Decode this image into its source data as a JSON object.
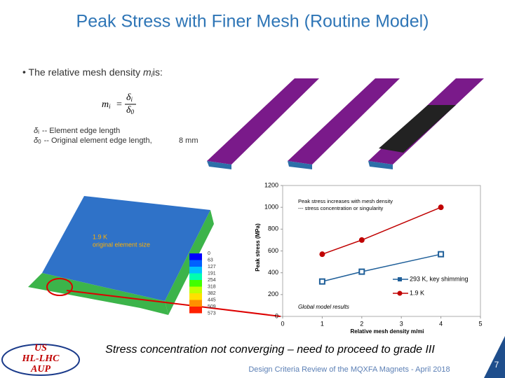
{
  "slide": {
    "title": "Peak Stress with Finer Mesh (Routine Model)",
    "bullet": {
      "before": "The relative mesh density",
      "symbol": "m",
      "sub": "i",
      "after": "is:"
    },
    "formula": {
      "lhs": "m",
      "lhs_sub": "i",
      "eq": "=",
      "num": "δ",
      "num_sub": "i",
      "den": "δ",
      "den_sub": "0"
    },
    "definitions": [
      {
        "symbol": "δ",
        "sub": "i",
        "text": "-- Element edge length"
      },
      {
        "symbol": "δ",
        "sub": "0",
        "text": "-- Original element edge length,"
      }
    ],
    "scale_label": "8 mm",
    "model_label": [
      "1.9 K",
      "original element size"
    ],
    "colorbar_labels": [
      0,
      63,
      127,
      191,
      254,
      318,
      382,
      445,
      509,
      573
    ],
    "caption": "Stress concentration not converging – need to proceed to grade III",
    "footer": "Design Criteria Review of the MQXFA Magnets - April 2018",
    "page_number": "7",
    "logo": [
      "US",
      "HL-LHC",
      "AUP"
    ]
  },
  "chart_data": {
    "type": "line",
    "xlabel": "Relative mesh density m/mi",
    "ylabel": "Peak stress (MPa)",
    "annotations": [
      "Peak stress increases with mesh density",
      "--- stress concentration or singularity",
      "Global model results"
    ],
    "series": [
      {
        "name": "293 K, key shimming",
        "color": "#1f5f99",
        "marker": "square",
        "x": [
          1,
          2,
          4
        ],
        "values": [
          320,
          410,
          570
        ]
      },
      {
        "name": "1.9 K",
        "color": "#c00000",
        "marker": "circle",
        "x": [
          1,
          2,
          4
        ],
        "values": [
          570,
          700,
          1000
        ]
      }
    ],
    "xlim": [
      0,
      5
    ],
    "xticks": [
      0,
      1,
      2,
      3,
      4,
      5
    ],
    "ylim": [
      0,
      1200
    ],
    "yticks": [
      0,
      200,
      400,
      600,
      800,
      1000,
      1200
    ]
  }
}
